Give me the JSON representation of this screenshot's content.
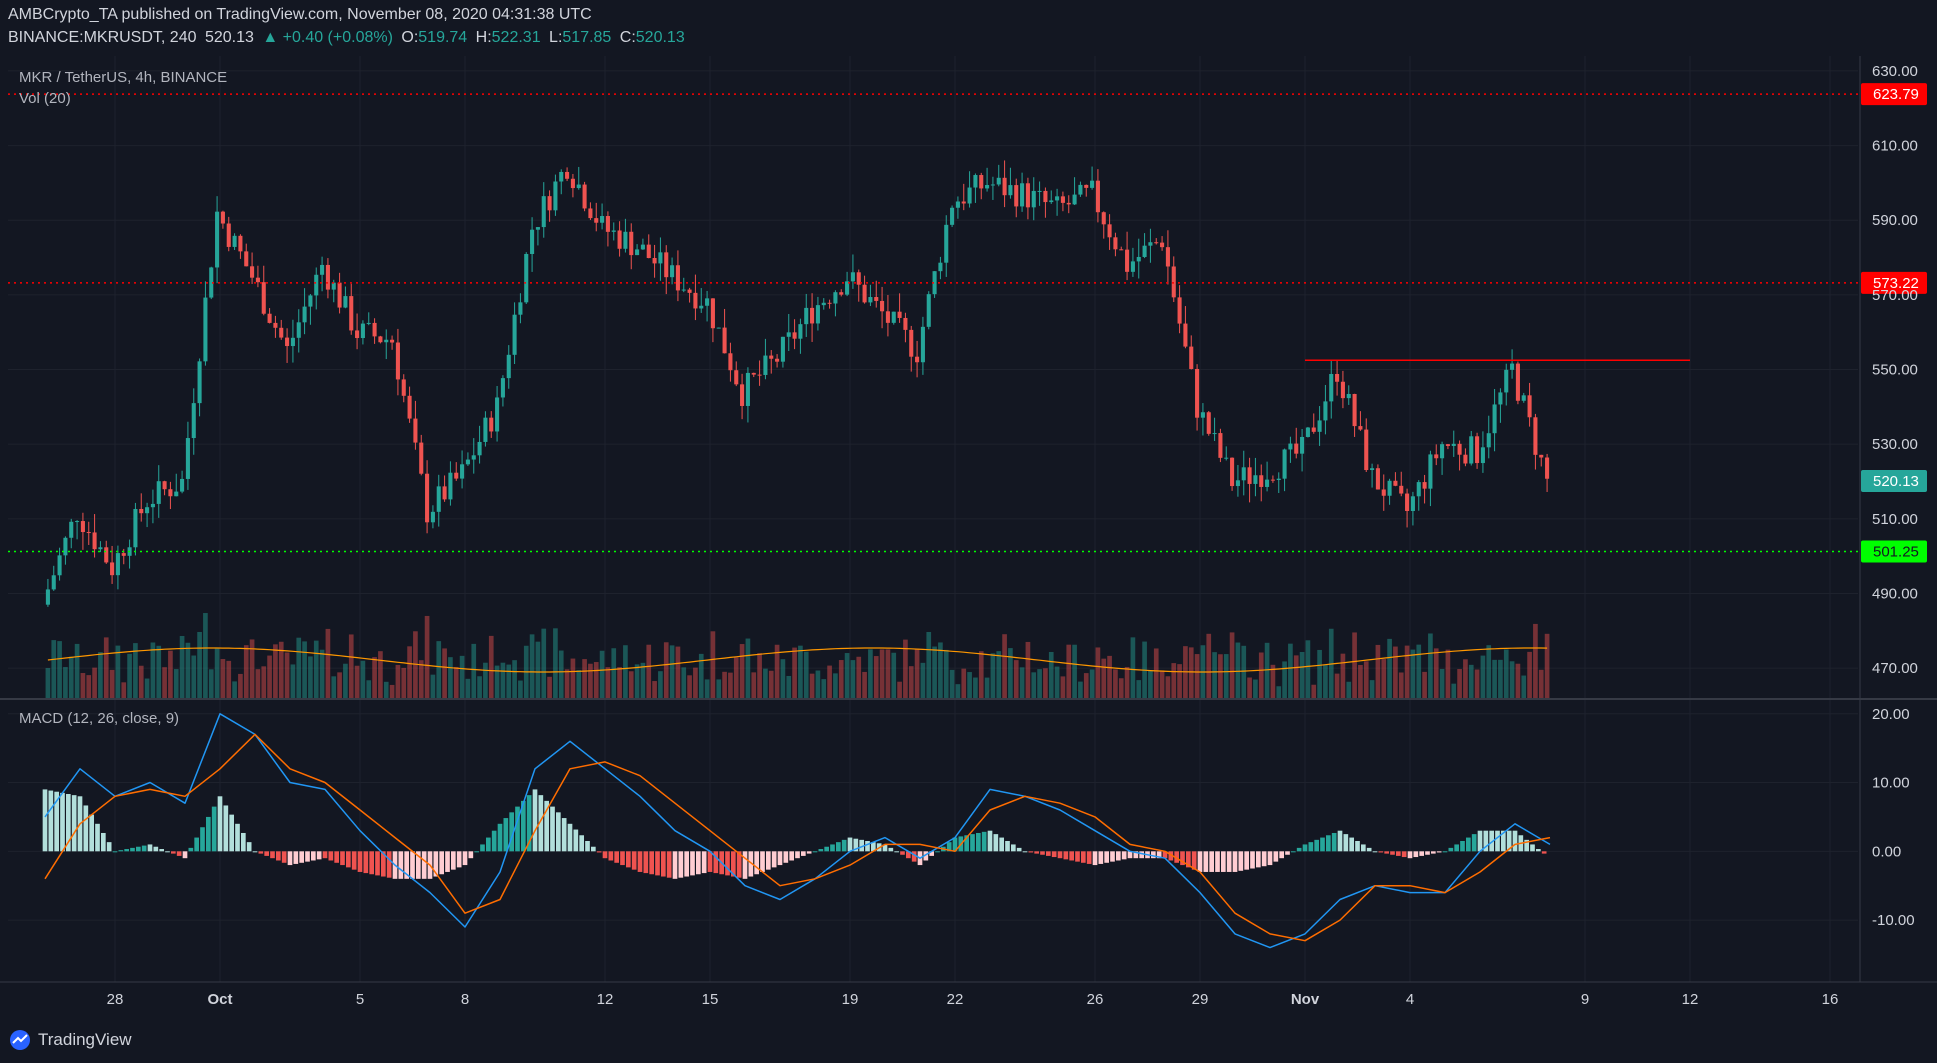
{
  "header": {
    "line1": "AMBCrypto_TA published on TradingView.com, November 08, 2020 04:31:38 UTC",
    "symbol": "BINANCE:MKRUSDT, 240",
    "last": "520.13",
    "change": "▲ +0.40 (+0.08%)",
    "o_label": "O:",
    "o_value": "519.74",
    "h_label": "H:",
    "h_value": "522.31",
    "l_label": "L:",
    "l_value": "517.85",
    "c_label": "C:",
    "c_value": "520.13"
  },
  "footer": {
    "logo_text": "TradingView"
  },
  "colors": {
    "background": "#131722",
    "up": "#26a69a",
    "down": "#ef5350",
    "macd": "#2196f3",
    "signal": "#ff6d00",
    "level_red": "#ff0000",
    "level_green": "#00ff00"
  },
  "chart_data": [
    {
      "type": "candlestick",
      "title": "MKR / TetherUS, 4h, BINANCE",
      "volume_label": "Vol (20)",
      "ylim": [
        462,
        634
      ],
      "yticks": [
        "630.00",
        "610.00",
        "590.00",
        "570.00",
        "550.00",
        "530.00",
        "510.00",
        "490.00",
        "470.00"
      ],
      "x_ticks": [
        "28",
        "Oct",
        "5",
        "8",
        "12",
        "15",
        "19",
        "22",
        "26",
        "29",
        "Nov",
        "4",
        "9",
        "12",
        "16"
      ],
      "last_price": "520.13",
      "horizontal_levels": [
        {
          "value": 623.79,
          "label": "623.79",
          "color": "#ff0000",
          "style": "dotted"
        },
        {
          "value": 573.22,
          "label": "573.22",
          "color": "#ff0000",
          "style": "dotted"
        },
        {
          "value": 501.25,
          "label": "501.25",
          "color": "#00ff00",
          "style": "dotted"
        }
      ],
      "resistance_line": {
        "value": 552.5,
        "from": "Nov 1",
        "to": "Nov 12",
        "color": "#ff0000"
      },
      "close_path": [
        [
          "Sep 26",
          487
        ],
        [
          "Sep 27",
          512
        ],
        [
          "Sep 28",
          497
        ],
        [
          "Sep 29",
          515
        ],
        [
          "Sep 30",
          520
        ],
        [
          "Oct 1",
          592
        ],
        [
          "Oct 2",
          575
        ],
        [
          "Oct 3",
          555
        ],
        [
          "Oct 4",
          578
        ],
        [
          "Oct 5",
          560
        ],
        [
          "Oct 6",
          558
        ],
        [
          "Oct 7",
          512
        ],
        [
          "Oct 8",
          522
        ],
        [
          "Oct 9",
          540
        ],
        [
          "Oct 10",
          588
        ],
        [
          "Oct 11",
          605
        ],
        [
          "Oct 12",
          588
        ],
        [
          "Oct 13",
          583
        ],
        [
          "Oct 14",
          575
        ],
        [
          "Oct 15",
          568
        ],
        [
          "Oct 16",
          544
        ],
        [
          "Oct 17",
          553
        ],
        [
          "Oct 18",
          566
        ],
        [
          "Oct 19",
          575
        ],
        [
          "Oct 20",
          565
        ],
        [
          "Oct 21",
          555
        ],
        [
          "Oct 22",
          595
        ],
        [
          "Oct 23",
          600
        ],
        [
          "Oct 24",
          597
        ],
        [
          "Oct 25",
          593
        ],
        [
          "Oct 26",
          597
        ],
        [
          "Oct 27",
          578
        ],
        [
          "Oct 28",
          585
        ],
        [
          "Oct 29",
          540
        ],
        [
          "Oct 30",
          520
        ],
        [
          "Oct 31",
          523
        ],
        [
          "Nov 1",
          528
        ],
        [
          "Nov 2",
          550
        ],
        [
          "Nov 3",
          521
        ],
        [
          "Nov 4",
          512
        ],
        [
          "Nov 5",
          530
        ],
        [
          "Nov 6",
          528
        ],
        [
          "Nov 7",
          550
        ],
        [
          "Nov 8",
          520.13
        ]
      ]
    },
    {
      "type": "line",
      "title": "MACD (12, 26, close, 9)",
      "ylim": [
        -19,
        22
      ],
      "yticks": [
        "20.00",
        "10.00",
        "0.00",
        "-10.00"
      ],
      "macd": [
        [
          "Sep 26",
          5
        ],
        [
          "Sep 27",
          12
        ],
        [
          "Sep 28",
          8
        ],
        [
          "Sep 29",
          10
        ],
        [
          "Sep 30",
          7
        ],
        [
          "Oct 1",
          20
        ],
        [
          "Oct 2",
          17
        ],
        [
          "Oct 3",
          10
        ],
        [
          "Oct 4",
          9
        ],
        [
          "Oct 5",
          3
        ],
        [
          "Oct 6",
          -2
        ],
        [
          "Oct 7",
          -6
        ],
        [
          "Oct 8",
          -11
        ],
        [
          "Oct 9",
          -3
        ],
        [
          "Oct 10",
          12
        ],
        [
          "Oct 11",
          16
        ],
        [
          "Oct 12",
          12
        ],
        [
          "Oct 13",
          8
        ],
        [
          "Oct 14",
          3
        ],
        [
          "Oct 15",
          0
        ],
        [
          "Oct 16",
          -5
        ],
        [
          "Oct 17",
          -7
        ],
        [
          "Oct 18",
          -4
        ],
        [
          "Oct 19",
          0
        ],
        [
          "Oct 20",
          2
        ],
        [
          "Oct 21",
          -1
        ],
        [
          "Oct 22",
          2
        ],
        [
          "Oct 23",
          9
        ],
        [
          "Oct 24",
          8
        ],
        [
          "Oct 25",
          6
        ],
        [
          "Oct 26",
          3
        ],
        [
          "Oct 27",
          0
        ],
        [
          "Oct 28",
          -1
        ],
        [
          "Oct 29",
          -6
        ],
        [
          "Oct 30",
          -12
        ],
        [
          "Oct 31",
          -14
        ],
        [
          "Nov 1",
          -12
        ],
        [
          "Nov 2",
          -7
        ],
        [
          "Nov 3",
          -5
        ],
        [
          "Nov 4",
          -6
        ],
        [
          "Nov 5",
          -6
        ],
        [
          "Nov 6",
          0
        ],
        [
          "Nov 7",
          4
        ],
        [
          "Nov 8",
          1
        ]
      ],
      "signal": [
        [
          "Sep 26",
          -4
        ],
        [
          "Sep 27",
          4
        ],
        [
          "Sep 28",
          8
        ],
        [
          "Sep 29",
          9
        ],
        [
          "Sep 30",
          8
        ],
        [
          "Oct 1",
          12
        ],
        [
          "Oct 2",
          17
        ],
        [
          "Oct 3",
          12
        ],
        [
          "Oct 4",
          10
        ],
        [
          "Oct 5",
          6
        ],
        [
          "Oct 6",
          2
        ],
        [
          "Oct 7",
          -2
        ],
        [
          "Oct 8",
          -9
        ],
        [
          "Oct 9",
          -7
        ],
        [
          "Oct 10",
          3
        ],
        [
          "Oct 11",
          12
        ],
        [
          "Oct 12",
          13
        ],
        [
          "Oct 13",
          11
        ],
        [
          "Oct 14",
          7
        ],
        [
          "Oct 15",
          3
        ],
        [
          "Oct 16",
          -1
        ],
        [
          "Oct 17",
          -5
        ],
        [
          "Oct 18",
          -4
        ],
        [
          "Oct 19",
          -2
        ],
        [
          "Oct 20",
          1
        ],
        [
          "Oct 21",
          1
        ],
        [
          "Oct 22",
          0
        ],
        [
          "Oct 23",
          6
        ],
        [
          "Oct 24",
          8
        ],
        [
          "Oct 25",
          7
        ],
        [
          "Oct 26",
          5
        ],
        [
          "Oct 27",
          1
        ],
        [
          "Oct 28",
          0
        ],
        [
          "Oct 29",
          -3
        ],
        [
          "Oct 30",
          -9
        ],
        [
          "Oct 31",
          -12
        ],
        [
          "Nov 1",
          -13
        ],
        [
          "Nov 2",
          -10
        ],
        [
          "Nov 3",
          -5
        ],
        [
          "Nov 4",
          -5
        ],
        [
          "Nov 5",
          -6
        ],
        [
          "Nov 6",
          -3
        ],
        [
          "Nov 7",
          1
        ],
        [
          "Nov 8",
          2
        ]
      ]
    }
  ]
}
